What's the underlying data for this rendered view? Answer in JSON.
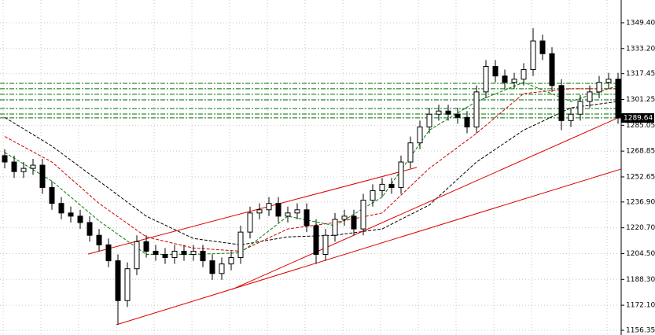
{
  "chart_data": {
    "type": "candlestick",
    "open": [
      1266,
      1262,
      1256,
      1258,
      1260,
      1246,
      1236,
      1230,
      1228,
      1224,
      1216,
      1210,
      1200,
      1175,
      1195,
      1212,
      1206,
      1204,
      1202,
      1206,
      1204,
      1206,
      1200,
      1192,
      1198,
      1202,
      1218,
      1230,
      1232,
      1236,
      1228,
      1230,
      1232,
      1222,
      1204,
      1216,
      1226,
      1228,
      1220,
      1238,
      1244,
      1248,
      1246,
      1262,
      1274,
      1284,
      1292,
      1294,
      1292,
      1290,
      1284,
      1306,
      1322,
      1316,
      1312,
      1314,
      1320,
      1338,
      1330,
      1310,
      1288,
      1292,
      1300,
      1306,
      1312,
      1314
    ],
    "high": [
      1270,
      1266,
      1262,
      1264,
      1264,
      1250,
      1240,
      1234,
      1232,
      1228,
      1220,
      1214,
      1204,
      1199,
      1216,
      1216,
      1210,
      1208,
      1210,
      1210,
      1210,
      1210,
      1204,
      1202,
      1206,
      1222,
      1234,
      1236,
      1240,
      1240,
      1234,
      1236,
      1236,
      1226,
      1220,
      1230,
      1232,
      1232,
      1242,
      1248,
      1252,
      1252,
      1266,
      1278,
      1288,
      1296,
      1298,
      1298,
      1296,
      1294,
      1310,
      1326,
      1326,
      1320,
      1318,
      1324,
      1346,
      1342,
      1334,
      1314,
      1296,
      1304,
      1310,
      1316,
      1318,
      1318
    ],
    "low": [
      1258,
      1252,
      1252,
      1254,
      1242,
      1232,
      1226,
      1224,
      1220,
      1212,
      1206,
      1196,
      1160,
      1171,
      1191,
      1202,
      1200,
      1198,
      1198,
      1200,
      1200,
      1196,
      1188,
      1188,
      1194,
      1198,
      1214,
      1226,
      1228,
      1224,
      1224,
      1226,
      1218,
      1198,
      1200,
      1212,
      1222,
      1216,
      1216,
      1234,
      1240,
      1242,
      1242,
      1258,
      1270,
      1280,
      1288,
      1288,
      1286,
      1280,
      1280,
      1302,
      1312,
      1308,
      1308,
      1310,
      1316,
      1326,
      1306,
      1282,
      1284,
      1288,
      1296,
      1302,
      1308,
      1286
    ],
    "close": [
      1262,
      1256,
      1258,
      1260,
      1246,
      1236,
      1230,
      1228,
      1224,
      1216,
      1210,
      1200,
      1175,
      1195,
      1212,
      1206,
      1204,
      1202,
      1206,
      1204,
      1206,
      1200,
      1192,
      1198,
      1202,
      1218,
      1230,
      1232,
      1236,
      1228,
      1230,
      1232,
      1222,
      1204,
      1216,
      1226,
      1228,
      1220,
      1238,
      1244,
      1248,
      1246,
      1262,
      1274,
      1284,
      1292,
      1294,
      1292,
      1290,
      1284,
      1306,
      1322,
      1316,
      1312,
      1314,
      1320,
      1338,
      1330,
      1310,
      1288,
      1292,
      1300,
      1306,
      1312,
      1314,
      1289.64
    ],
    "candle_color": "#000000",
    "series": [
      {
        "color": "#000000",
        "x": [
          0,
          5,
          10,
          15,
          20,
          25,
          30,
          35,
          40,
          45,
          50,
          55,
          60,
          65
        ],
        "values": [
          1290,
          1272,
          1250,
          1228,
          1214,
          1210,
          1215,
          1216,
          1220,
          1235,
          1262,
          1282,
          1296,
          1300
        ]
      },
      {
        "color": "#cc0000",
        "x": [
          0,
          5,
          10,
          15,
          20,
          25,
          30,
          35,
          40,
          45,
          50,
          55,
          60,
          65
        ],
        "values": [
          1278,
          1262,
          1236,
          1215,
          1208,
          1206,
          1220,
          1224,
          1230,
          1258,
          1280,
          1305,
          1308,
          1308
        ]
      },
      {
        "color": "#008000",
        "x": [
          0,
          5,
          10,
          15,
          20,
          25,
          30,
          35,
          40,
          45,
          50,
          55,
          60,
          65
        ],
        "values": [
          1268,
          1250,
          1225,
          1204,
          1204,
          1205,
          1228,
          1222,
          1240,
          1282,
          1300,
          1312,
          1300,
          1310
        ]
      }
    ],
    "trendlines": [
      {
        "color": "#dd0000",
        "x": [
          8.83,
          43.67
        ],
        "values": [
          1204.2,
          1258.6
        ]
      },
      {
        "color": "#dd0000",
        "x": [
          24.08,
          65.33
        ],
        "values": [
          1182.0,
          1290.6
        ]
      },
      {
        "color": "#dd0000",
        "x": [
          11.83,
          65.33
        ],
        "values": [
          1159.8,
          1257.6
        ]
      }
    ],
    "levels": {
      "color": "#007000",
      "values": [
        1311.4,
        1308.0,
        1304.5,
        1301.0,
        1295.6,
        1292.1,
        1289.7
      ]
    },
    "ylim": [
      1153.4,
      1363.7
    ],
    "yticks": [
      {
        "value": 1349.4,
        "label": "1349.40"
      },
      {
        "value": 1333.2,
        "label": "1333.20"
      },
      {
        "value": 1317.45,
        "label": "1317.45"
      },
      {
        "value": 1301.25,
        "label": "1301.25"
      },
      {
        "value": 1285.05,
        "label": "1285.05"
      },
      {
        "value": 1268.85,
        "label": "1268.85"
      },
      {
        "value": 1252.65,
        "label": "1252.65"
      },
      {
        "value": 1236.9,
        "label": "1236.90"
      },
      {
        "value": 1220.7,
        "label": "1220.70"
      },
      {
        "value": 1204.5,
        "label": "1204.50"
      },
      {
        "value": 1188.3,
        "label": "1188.30"
      },
      {
        "value": 1172.1,
        "label": "1172.10"
      },
      {
        "value": 1156.35,
        "label": "1156.35"
      }
    ],
    "grid": true
  }
}
